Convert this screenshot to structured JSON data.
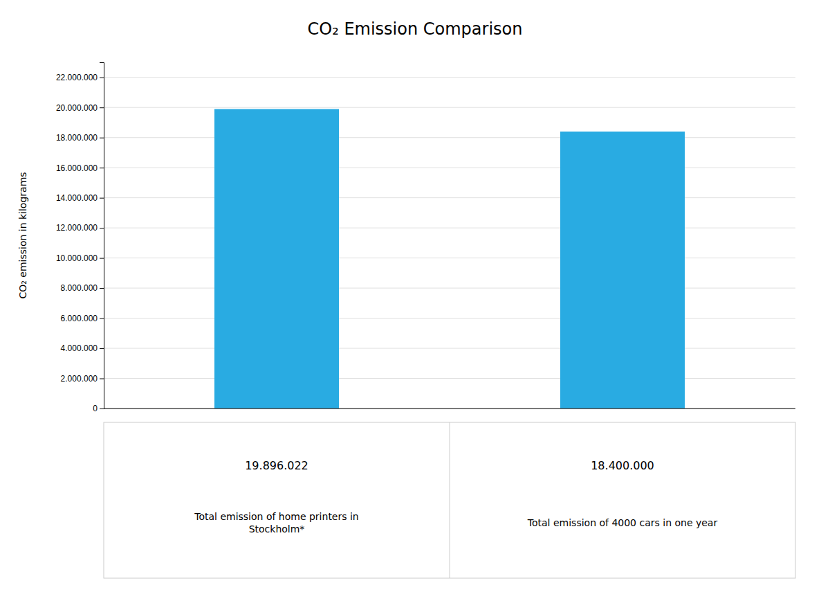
{
  "chart_data": {
    "type": "bar",
    "title": "CO₂ Emission Comparison",
    "ylabel": "CO₂ emission in kilograms",
    "categories": [
      "Total emission of home printers in\nStockholm*",
      "Total emission of 4000 cars in one year"
    ],
    "values": [
      19896022,
      18400000
    ],
    "value_labels": [
      "19.896.022",
      "18.400.000"
    ],
    "data_labels": true,
    "color": "#29abe2",
    "ylim": [
      0,
      23000000
    ],
    "yticks": [
      0,
      {
        "value": 2000000,
        "label": "2.000.000"
      },
      {
        "value": 4000000,
        "label": "4.000.000"
      },
      {
        "value": 6000000,
        "label": "6.000.000"
      },
      {
        "value": 8000000,
        "label": "8.000.000"
      },
      {
        "value": 10000000,
        "label": "10.000.000"
      },
      {
        "value": 12000000,
        "label": "12.000.000"
      },
      {
        "value": 14000000,
        "label": "14.000.000"
      },
      {
        "value": 16000000,
        "label": "16.000.000"
      },
      {
        "value": 18000000,
        "label": "18.000.000"
      },
      {
        "value": 20000000,
        "label": "20.000.000"
      },
      {
        "value": 22000000,
        "label": "22.000.000"
      }
    ],
    "grid": true
  }
}
